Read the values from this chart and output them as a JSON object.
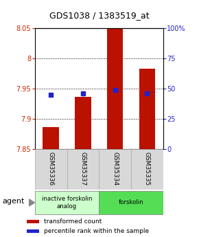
{
  "title": "GDS1038 / 1383519_at",
  "categories": [
    "GSM35336",
    "GSM35337",
    "GSM35334",
    "GSM35335"
  ],
  "bar_values": [
    7.887,
    7.937,
    8.055,
    7.983
  ],
  "bar_bottom": 7.85,
  "ylim_left": [
    7.85,
    8.05
  ],
  "ylim_right": [
    0,
    100
  ],
  "yticks_left": [
    7.85,
    7.9,
    7.95,
    8.0,
    8.05
  ],
  "yticks_right": [
    0,
    25,
    50,
    75,
    100
  ],
  "ytick_labels_left": [
    "7.85",
    "7.9",
    "7.95",
    "8",
    "8.05"
  ],
  "ytick_labels_right": [
    "0",
    "25",
    "50",
    "75",
    "100%"
  ],
  "percentile_ranks": [
    45,
    46,
    49,
    46
  ],
  "bar_color": "#bb1100",
  "percentile_color": "#2222cc",
  "agent_groups": [
    {
      "label": "inactive forskolin\nanalog",
      "color": "#ccffcc",
      "span": [
        0,
        2
      ]
    },
    {
      "label": "forskolin",
      "color": "#55dd55",
      "span": [
        2,
        4
      ]
    }
  ],
  "legend_items": [
    {
      "color": "#bb1100",
      "label": "transformed count"
    },
    {
      "color": "#2222cc",
      "label": "percentile rank within the sample"
    }
  ],
  "agent_label": "agent",
  "bar_width": 0.5,
  "background_color": "#ffffff",
  "left_tick_color": "#cc2200",
  "right_tick_color": "#2222cc",
  "title_fontsize": 9,
  "tick_fontsize": 7,
  "label_fontsize": 6.5,
  "agent_fontsize": 8,
  "legend_fontsize": 6.5
}
